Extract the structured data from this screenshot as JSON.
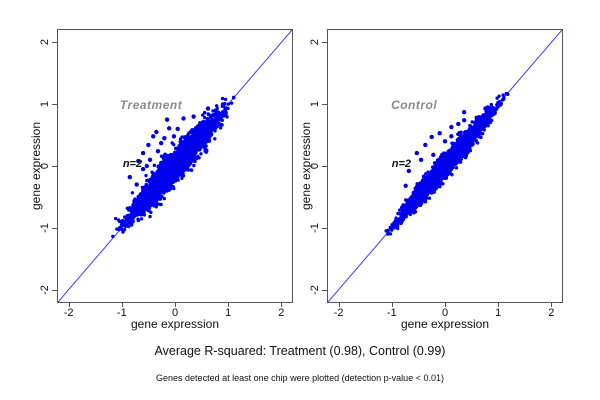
{
  "figure": {
    "background": "#ffffff",
    "point_color": "#0000ee",
    "line_color": "#3a3af0",
    "box_color": "#555555",
    "tick_color": "#555555",
    "text_color": "#111111",
    "panel_label_color": "#8a8a8a"
  },
  "captions": {
    "rsquared_summary": "Average R-squared: Treatment (0.98), Control (0.99)",
    "footnote": "Genes detected at least one chip were plotted (detection p-value < 0.01)"
  },
  "chart_data": [
    {
      "type": "scatter",
      "panel_label": "Treatment",
      "sample_size_label": "n=2",
      "n_replicates": 2,
      "avg_r_squared": 0.98,
      "xlabel": "gene expression",
      "ylabel": "gene expression",
      "xlim": [
        -2.2,
        2.2
      ],
      "ylim": [
        -2.2,
        2.2
      ],
      "xticks": [
        -2,
        -1,
        0,
        1,
        2
      ],
      "yticks": [
        -2,
        -1,
        0,
        1,
        2
      ],
      "grid": false,
      "identity_line": {
        "from": [
          -2.2,
          -2.2
        ],
        "to": [
          2.2,
          2.2
        ]
      },
      "panel_label_pos": [
        -0.45,
        0.98
      ],
      "sample_size_label_pos": [
        -0.8,
        0.03
      ],
      "dense_cluster": {
        "shape": "diagonal-band",
        "along_range": [
          -1.16,
          1.18
        ],
        "perp_sd": 0.085,
        "count": 3200,
        "seed": 7
      },
      "outliers": [
        [
          0.62,
          0.93
        ],
        [
          0.35,
          0.8
        ],
        [
          0.16,
          0.77
        ],
        [
          -0.15,
          0.75
        ],
        [
          0.5,
          0.69
        ],
        [
          -0.11,
          0.61
        ],
        [
          0.05,
          0.6
        ],
        [
          0.3,
          0.55
        ],
        [
          -0.35,
          0.55
        ],
        [
          -0.02,
          0.48
        ],
        [
          -0.41,
          0.48
        ],
        [
          -0.2,
          0.45
        ],
        [
          -0.26,
          0.37
        ],
        [
          -0.5,
          0.34
        ],
        [
          0.25,
          0.3
        ],
        [
          -0.32,
          0.24
        ],
        [
          -0.6,
          0.21
        ],
        [
          -0.47,
          0.1
        ],
        [
          -0.69,
          0.08
        ],
        [
          -0.26,
          0.05
        ],
        [
          -0.53,
          0.0
        ],
        [
          -0.6,
          -0.05
        ],
        [
          0.13,
          -0.08
        ],
        [
          -0.85,
          -0.18
        ],
        [
          -0.05,
          -0.21
        ],
        [
          -0.72,
          -0.3
        ]
      ]
    },
    {
      "type": "scatter",
      "panel_label": "Control",
      "sample_size_label": "n=2",
      "n_replicates": 2,
      "avg_r_squared": 0.99,
      "xlabel": "gene expression",
      "ylabel": "gene expression",
      "xlim": [
        -2.2,
        2.2
      ],
      "ylim": [
        -2.2,
        2.2
      ],
      "xticks": [
        -2,
        -1,
        0,
        1,
        2
      ],
      "yticks": [
        -2,
        -1,
        0,
        1,
        2
      ],
      "grid": false,
      "identity_line": {
        "from": [
          -2.2,
          -2.2
        ],
        "to": [
          2.2,
          2.2
        ]
      },
      "panel_label_pos": [
        -0.58,
        0.98
      ],
      "sample_size_label_pos": [
        -0.82,
        0.03
      ],
      "dense_cluster": {
        "shape": "diagonal-band",
        "along_range": [
          -1.14,
          1.17
        ],
        "perp_sd": 0.06,
        "count": 3200,
        "seed": 13
      },
      "outliers": [
        [
          0.76,
          0.93
        ],
        [
          0.36,
          0.87
        ],
        [
          0.64,
          0.79
        ],
        [
          0.36,
          0.74
        ],
        [
          0.25,
          0.68
        ],
        [
          0.12,
          0.63
        ],
        [
          0.5,
          0.6
        ],
        [
          -0.1,
          0.53
        ],
        [
          0.12,
          0.48
        ],
        [
          -0.25,
          0.47
        ],
        [
          0.0,
          0.4
        ],
        [
          -0.37,
          0.34
        ],
        [
          -0.53,
          0.21
        ],
        [
          -0.22,
          0.18
        ],
        [
          -0.45,
          0.1
        ],
        [
          -0.68,
          -0.08
        ],
        [
          -0.74,
          -0.32
        ]
      ]
    }
  ]
}
